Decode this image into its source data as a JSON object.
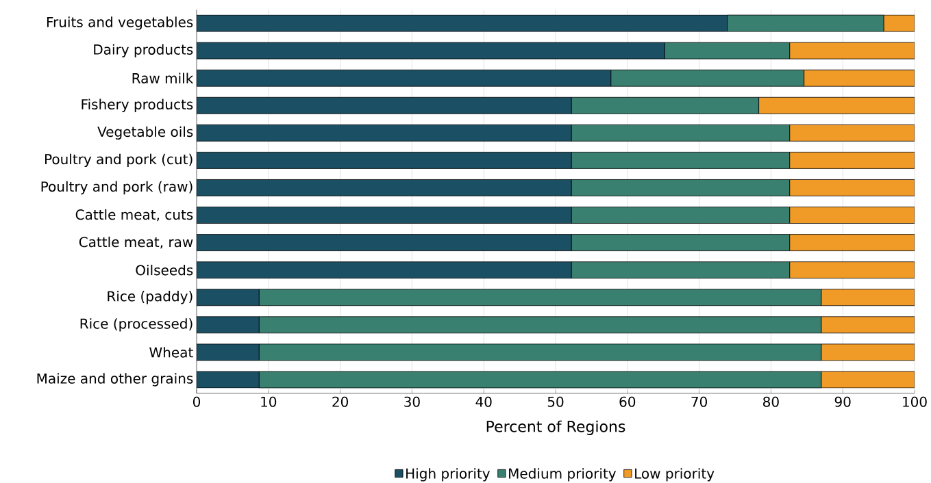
{
  "chart_data": {
    "type": "bar",
    "orientation": "horizontal",
    "stacked": true,
    "xlabel": "Percent of Regions",
    "categories": [
      "Fruits and vegetables",
      "Dairy products",
      "Raw milk",
      "Fishery products",
      "Vegetable oils",
      "Poultry and pork (cut)",
      "Poultry and pork (raw)",
      "Cattle meat, cuts",
      "Cattle meat, raw",
      "Oilseeds",
      "Rice (paddy)",
      "Rice (processed)",
      "Wheat",
      "Maize and other grains"
    ],
    "series": [
      {
        "name": "High priority",
        "color": "#1b4f63",
        "values": [
          73.9,
          65.2,
          57.7,
          52.2,
          52.2,
          52.2,
          52.2,
          52.2,
          52.2,
          52.2,
          8.7,
          8.7,
          8.7,
          8.7
        ]
      },
      {
        "name": "Medium priority",
        "color": "#3a8070",
        "values": [
          21.8,
          17.4,
          26.9,
          26.1,
          30.4,
          30.4,
          30.4,
          30.4,
          30.4,
          30.4,
          78.3,
          78.3,
          78.3,
          78.3
        ]
      },
      {
        "name": "Low priority",
        "color": "#f09a28",
        "values": [
          4.3,
          17.4,
          15.4,
          21.7,
          17.4,
          17.4,
          17.4,
          17.4,
          17.4,
          17.4,
          13.0,
          13.0,
          13.0,
          13.0
        ]
      }
    ],
    "xlim": [
      0,
      100
    ],
    "xticks": [
      0,
      10,
      20,
      30,
      40,
      50,
      60,
      70,
      80,
      90,
      100
    ],
    "grid": "x",
    "legend": "bottom"
  }
}
